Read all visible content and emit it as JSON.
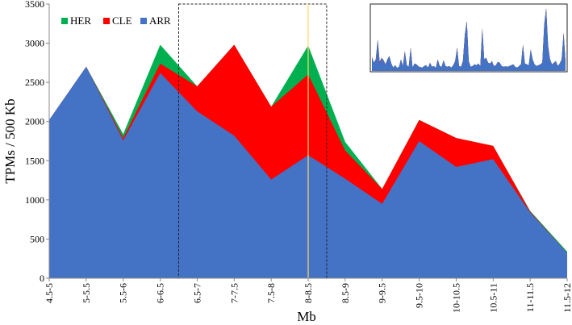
{
  "chart_data": {
    "type": "area",
    "stacked": true,
    "title": "",
    "xlabel": "Mb",
    "ylabel": "TPMs / 500 Kb",
    "ylim": [
      0,
      3500
    ],
    "yticks": [
      0,
      500,
      1000,
      1500,
      2000,
      2500,
      3000,
      3500
    ],
    "categories": [
      "4.5-5",
      "5-5.5",
      "5.5-6",
      "6-6.5",
      "6.5-7",
      "7-7.5",
      "7.5-8",
      "8-8.5",
      "8.5-9",
      "9-9.5",
      "9.5-10",
      "10-10.5",
      "10.5-11",
      "11-11.5",
      "11.5-12"
    ],
    "series": [
      {
        "name": "ARR",
        "color": "#4472C4",
        "values": [
          2020,
          2700,
          1760,
          2620,
          2130,
          1820,
          1260,
          1570,
          1270,
          950,
          1750,
          1420,
          1520,
          840,
          320
        ]
      },
      {
        "name": "CLE",
        "color": "#FF0000",
        "values": [
          0,
          0,
          30,
          120,
          320,
          1160,
          930,
          1030,
          360,
          190,
          270,
          370,
          170,
          10,
          0
        ]
      },
      {
        "name": "HER",
        "color": "#00B050",
        "values": [
          0,
          0,
          50,
          240,
          0,
          0,
          0,
          370,
          110,
          0,
          0,
          0,
          0,
          10,
          20
        ]
      }
    ],
    "legend": {
      "position": "top-left",
      "order": [
        "HER",
        "CLE",
        "ARR"
      ]
    },
    "grid": false,
    "highlight_window": {
      "from": "6.5-7",
      "to": "8.5-9",
      "style": "dashed box"
    },
    "highlight_line": {
      "at": "8-8.5",
      "color": "#FFD966"
    },
    "inset": {
      "description_free": true,
      "series": [
        {
          "name": "ARR",
          "color": "#4472C4",
          "values": [
            850,
            500,
            700,
            1900,
            450,
            800,
            650,
            400,
            700,
            900,
            450,
            200,
            350,
            180,
            250,
            700,
            300,
            1200,
            350,
            250,
            1400,
            200,
            450,
            400,
            280,
            230,
            200,
            300,
            350,
            200,
            500,
            250,
            300,
            180,
            700,
            300,
            250,
            650,
            300,
            250,
            300,
            200,
            350,
            600,
            1400,
            300,
            250,
            600,
            2200,
            3000,
            600,
            250,
            300,
            400,
            350,
            450,
            300,
            2600,
            700,
            800,
            500,
            450,
            600,
            300,
            350,
            550,
            500,
            300,
            250,
            280,
            250,
            300,
            350,
            400,
            250,
            200,
            300,
            400,
            1600,
            450,
            400,
            350,
            1300,
            700,
            400,
            300,
            350,
            400,
            500,
            2800,
            3800,
            1500,
            700,
            400,
            500,
            600,
            300,
            450,
            700,
            2300,
            500
          ]
        },
        {
          "name": "CLE",
          "color": "#FF0000",
          "values": [
            0,
            0,
            0,
            0,
            100,
            0,
            0,
            0,
            0,
            0,
            0,
            0,
            0,
            0,
            0,
            0,
            0,
            0,
            0,
            0,
            0,
            0,
            0,
            0,
            0,
            0,
            0,
            0,
            0,
            0,
            0,
            0,
            0,
            0,
            0,
            0,
            0,
            0,
            0,
            0,
            0,
            0,
            0,
            0,
            0,
            0,
            0,
            0,
            0,
            0,
            0,
            0,
            0,
            0,
            0,
            0,
            0,
            0,
            0,
            0,
            0,
            0,
            0,
            0,
            0,
            0,
            0,
            0,
            0,
            0,
            0,
            0,
            0,
            0,
            0,
            0,
            0,
            0,
            0,
            0,
            0,
            0,
            0,
            0,
            0,
            0,
            0,
            0,
            0,
            0,
            0,
            0,
            0,
            0,
            0,
            0,
            0,
            0,
            0,
            0,
            0
          ]
        },
        {
          "name": "HER",
          "color": "#00B050",
          "values": [
            0,
            0,
            0,
            0,
            0,
            0,
            0,
            0,
            0,
            0,
            0,
            0,
            0,
            0,
            0,
            0,
            0,
            0,
            0,
            0,
            0,
            0,
            0,
            0,
            0,
            0,
            0,
            0,
            0,
            0,
            0,
            0,
            0,
            0,
            0,
            0,
            0,
            0,
            0,
            0,
            0,
            0,
            0,
            0,
            0,
            0,
            0,
            0,
            0,
            0,
            0,
            0,
            0,
            0,
            0,
            0,
            0,
            0,
            0,
            0,
            0,
            0,
            0,
            0,
            0,
            0,
            0,
            0,
            0,
            0,
            0,
            0,
            0,
            0,
            0,
            0,
            0,
            0,
            0,
            0,
            0,
            0,
            0,
            0,
            0,
            0,
            0,
            0,
            0,
            0,
            0,
            0,
            0,
            0,
            0,
            0,
            0,
            0,
            0,
            0,
            0
          ]
        }
      ]
    }
  }
}
